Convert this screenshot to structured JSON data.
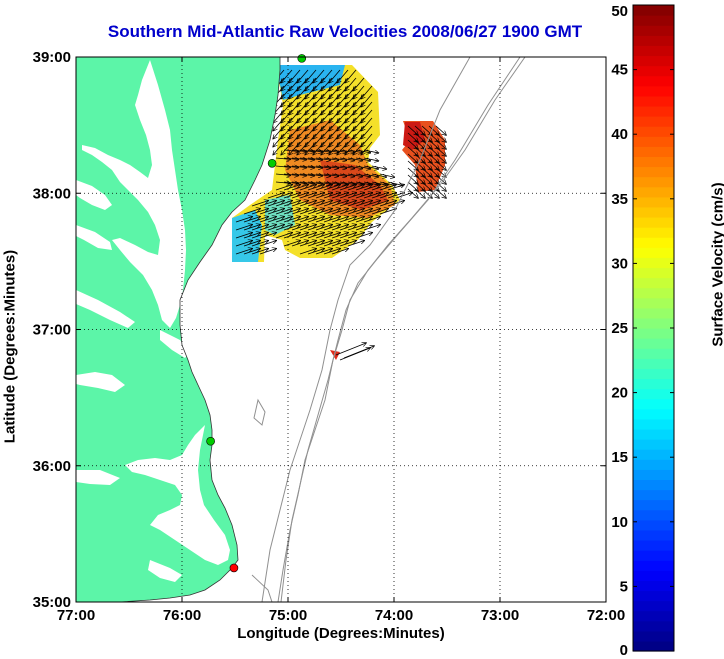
{
  "chart_data": {
    "type": "map",
    "title": "Southern Mid-Atlantic Raw Velocities 2008/06/27 1900 GMT",
    "xlabel": "Longitude (Degrees:Minutes)",
    "ylabel": "Latitude (Degrees:Minutes)",
    "xlim": [
      -77,
      -72
    ],
    "ylim": [
      35,
      39
    ],
    "x_ticks": [
      {
        "value": -77,
        "label": "77:00"
      },
      {
        "value": -76,
        "label": "76:00"
      },
      {
        "value": -75,
        "label": "75:00"
      },
      {
        "value": -74,
        "label": "74:00"
      },
      {
        "value": -73,
        "label": "73:00"
      },
      {
        "value": -72,
        "label": "72:00"
      }
    ],
    "y_ticks": [
      {
        "value": 35,
        "label": "35:00"
      },
      {
        "value": 36,
        "label": "36:00"
      },
      {
        "value": 37,
        "label": "37:00"
      },
      {
        "value": 38,
        "label": "38:00"
      },
      {
        "value": 39,
        "label": "39:00"
      }
    ],
    "grid": "dotted",
    "colorbar": {
      "label": "Surface Velocity (cm/s)",
      "range": [
        0,
        50
      ],
      "ticks": [
        0,
        5,
        10,
        15,
        20,
        25,
        30,
        35,
        40,
        45,
        50
      ],
      "colormap": "jet"
    },
    "land_color": "#5cf5a8",
    "sites": [
      {
        "lon": -74.87,
        "lat": 38.99,
        "color": "#00cc00"
      },
      {
        "lon": -75.15,
        "lat": 38.22,
        "color": "#00cc00"
      },
      {
        "lon": -75.73,
        "lat": 36.18,
        "color": "#00cc00"
      },
      {
        "lon": -75.51,
        "lat": 35.25,
        "color": "#ff0000"
      }
    ]
  }
}
